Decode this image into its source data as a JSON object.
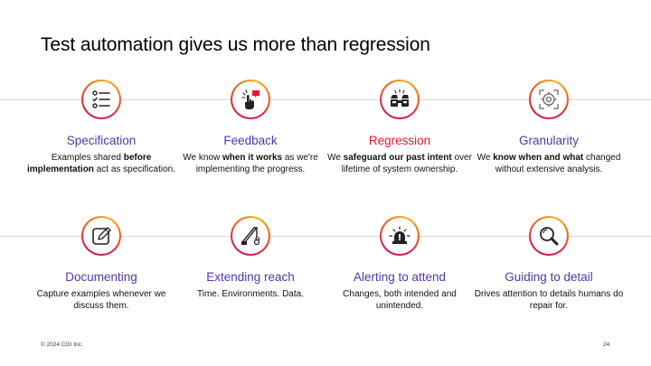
{
  "title": "Test automation gives us more than regression",
  "cards": [
    {
      "heading": "Specification",
      "icon": "checklist-icon",
      "desc": [
        {
          "t": "Examples shared ",
          "b": false
        },
        {
          "t": "before implementation",
          "b": true
        },
        {
          "t": " act as specification.",
          "b": false
        }
      ]
    },
    {
      "heading": "Feedback",
      "icon": "hand-touch-message-icon",
      "desc": [
        {
          "t": "We know ",
          "b": false
        },
        {
          "t": "when it works",
          "b": true
        },
        {
          "t": " as we're implementing the progress.",
          "b": false
        }
      ]
    },
    {
      "heading": "Regression",
      "icon": "binoculars-icon",
      "desc": [
        {
          "t": "We ",
          "b": false
        },
        {
          "t": "safeguard our past intent",
          "b": true
        },
        {
          "t": " over lifetime of system ownership.",
          "b": false
        }
      ]
    },
    {
      "heading": "Granularity",
      "icon": "target-focus-icon",
      "desc": [
        {
          "t": "We ",
          "b": false
        },
        {
          "t": "know when and what",
          "b": true
        },
        {
          "t": " changed without extensive analysis.",
          "b": false
        }
      ]
    },
    {
      "heading": "Documenting",
      "icon": "edit-document-icon",
      "desc": [
        {
          "t": "Capture examples whenever we discuss them.",
          "b": false
        }
      ]
    },
    {
      "heading": "Extending reach",
      "icon": "crane-hook-icon",
      "desc": [
        {
          "t": "Time. Environments. Data.",
          "b": false
        }
      ]
    },
    {
      "heading": "Alerting to attend",
      "icon": "siren-alert-icon",
      "desc": [
        {
          "t": "Changes, both intended and unintended.",
          "b": false
        }
      ]
    },
    {
      "heading": "Guiding to detail",
      "icon": "magnifier-icon",
      "desc": [
        {
          "t": "Drives attention to details humans do repair for.",
          "b": false
        }
      ]
    }
  ],
  "footer": {
    "copyright": "© 2024 CGI Inc.",
    "page_number": "24"
  },
  "colors": {
    "heading": "#5236ab",
    "heading_highlight": "#e31937",
    "divider": "#d6d6d6"
  }
}
